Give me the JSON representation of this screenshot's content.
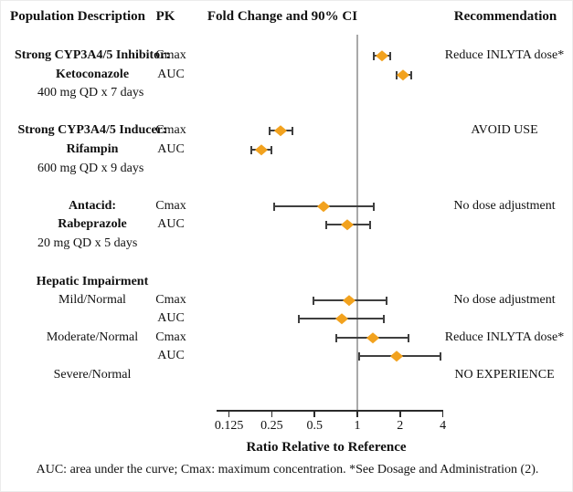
{
  "header": {
    "population": "Population Description",
    "pk": "PK",
    "plot": "Fold Change and 90% CI",
    "recommendation": "Recommendation"
  },
  "chart_data": {
    "type": "forest",
    "title": "Fold Change and 90% CI",
    "x_axis": {
      "label": "Ratio Relative to Reference",
      "scale": "log2",
      "ticks": [
        0.125,
        0.25,
        0.5,
        1,
        2,
        4
      ],
      "tick_labels": [
        "0.125",
        "0.25",
        "0.5",
        "1",
        "2",
        "4"
      ],
      "reference_value": 1
    },
    "rows": [
      {
        "pop": "Strong CYP3A4/5 Inhibitor:",
        "bold": true,
        "pk": "Cmax",
        "est": 1.5,
        "lo": 1.3,
        "hi": 1.7,
        "rec": "Reduce INLYTA dose*"
      },
      {
        "pop": "Ketoconazole",
        "bold": true,
        "pk": "AUC",
        "est": 2.1,
        "lo": 1.9,
        "hi": 2.4
      },
      {
        "pop": "400 mg QD x 7 days",
        "dose": true
      },
      {
        "pop": "Strong CYP3A4/5 Inducer:",
        "bold": true,
        "pk": "Cmax",
        "est": 0.29,
        "lo": 0.24,
        "hi": 0.35,
        "rec": "AVOID USE"
      },
      {
        "pop": "Rifampin",
        "bold": true,
        "pk": "AUC",
        "est": 0.21,
        "lo": 0.18,
        "hi": 0.25
      },
      {
        "pop": "600 mg QD x 9 days",
        "dose": true
      },
      {
        "pop": "Antacid:",
        "bold": true,
        "pk": "Cmax",
        "est": 0.58,
        "lo": 0.26,
        "hi": 1.3,
        "rec": "No dose adjustment"
      },
      {
        "pop": "Rabeprazole",
        "bold": true,
        "pk": "AUC",
        "est": 0.85,
        "lo": 0.6,
        "hi": 1.23
      },
      {
        "pop": "20 mg QD x 5 days",
        "dose": true
      },
      {
        "pop": "Hepatic Impairment",
        "bold": true
      },
      {
        "pop": "Mild/Normal",
        "pk": "Cmax",
        "est": 0.88,
        "lo": 0.49,
        "hi": 1.6,
        "rec": "No dose adjustment"
      },
      {
        "pk": "AUC",
        "est": 0.78,
        "lo": 0.39,
        "hi": 1.53
      },
      {
        "pop": "Moderate/Normal",
        "pk": "Cmax",
        "est": 1.29,
        "lo": 0.71,
        "hi": 2.28,
        "rec": "Reduce INLYTA dose*"
      },
      {
        "pk": "AUC",
        "est": 1.88,
        "lo": 1.03,
        "hi": 3.83
      },
      {
        "pop": "Severe/Normal",
        "rec": "NO EXPERIENCE"
      }
    ],
    "colors": {
      "marker": "#F2A21E",
      "error_bar": "#3F3F3F",
      "reference_line": "#A9A9A9",
      "axis": "#2B2B2B"
    },
    "legend": null,
    "grid": false
  },
  "footnote": "AUC: area under the curve; Cmax: maximum concentration. *See Dosage and Administration (2)."
}
